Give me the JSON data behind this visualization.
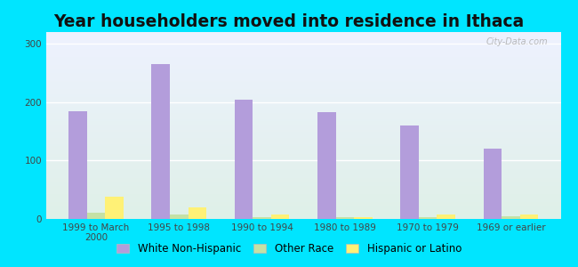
{
  "title": "Year householders moved into residence in Ithaca",
  "categories": [
    "1999 to March\n2000",
    "1995 to 1998",
    "1990 to 1994",
    "1980 to 1989",
    "1970 to 1979",
    "1969 or earlier"
  ],
  "series": {
    "White Non-Hispanic": [
      185,
      265,
      204,
      183,
      160,
      120
    ],
    "Other Race": [
      10,
      7,
      3,
      3,
      3,
      4
    ],
    "Hispanic or Latino": [
      38,
      20,
      7,
      3,
      7,
      7
    ]
  },
  "colors": {
    "White Non-Hispanic": "#b39ddb",
    "Other Race": "#c5e1a5",
    "Hispanic or Latino": "#fff176"
  },
  "ylim": [
    0,
    320
  ],
  "yticks": [
    0,
    100,
    200,
    300
  ],
  "bar_width": 0.22,
  "bg_outer": "#00e5ff",
  "bg_plot_top": "#eef2ff",
  "bg_plot_bottom": "#dff0e8",
  "watermark": "City-Data.com",
  "title_fontsize": 13.5,
  "legend_fontsize": 8.5,
  "tick_fontsize": 7.5
}
